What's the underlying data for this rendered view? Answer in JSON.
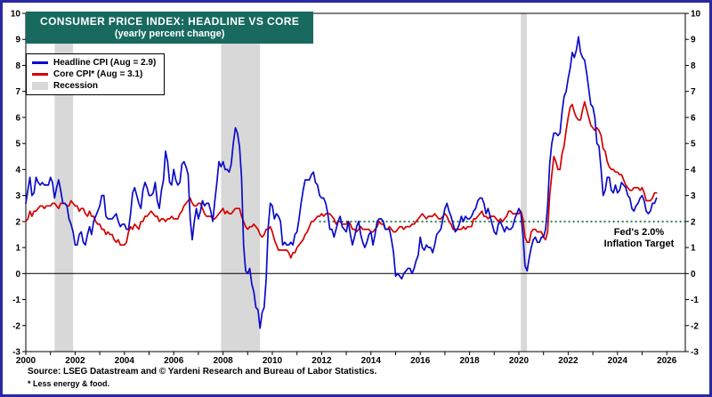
{
  "title": {
    "line1": "CONSUMER PRICE INDEX: HEADLINE VS CORE",
    "line2": "(yearly percent change)"
  },
  "legend": {
    "headline_label": "Headline CPI (Aug = 2.9)",
    "core_label": "Core CPI* (Aug = 3.1)",
    "recession_label": "Recession"
  },
  "annotations": {
    "fed_target_line1": "Fed's 2.0%",
    "fed_target_line2": "Inflation Target"
  },
  "footer": {
    "source": "Source: LSEG Datastream and © Yardeni Research and Bureau of Labor Statistics.",
    "footnote": "* Less energy & food."
  },
  "colors": {
    "headline": "#0b0bc8",
    "core": "#d40000",
    "recession": "#d8d8d8",
    "fed_target": "#267d52",
    "title_bg": "#186a5f",
    "title_text": "#ffffff",
    "border": "#2929a3",
    "axis": "#000000"
  },
  "chart_data": {
    "type": "line",
    "title": "CONSUMER PRICE INDEX: HEADLINE VS CORE",
    "subtitle": "(yearly percent change)",
    "xlabel": "",
    "ylabel": "yearly percent change",
    "xlim": [
      2000,
      2026.75
    ],
    "ylim": [
      -3,
      10
    ],
    "y_tick_step": 1,
    "x_tick_labels": [
      2000,
      2002,
      2004,
      2006,
      2008,
      2010,
      2012,
      2014,
      2016,
      2018,
      2020,
      2022,
      2024,
      2026
    ],
    "grid": false,
    "legend_position": "top-left",
    "fed_target": {
      "value": 2.0,
      "x_start": 2011.9,
      "label": "Fed's 2.0% Inflation Target"
    },
    "recessions": [
      [
        2001.17,
        2001.92
      ],
      [
        2007.92,
        2009.5
      ],
      [
        2020.08,
        2020.33
      ]
    ],
    "series": [
      {
        "name": "Headline CPI",
        "color_key": "headline",
        "latest": {
          "month": "Aug",
          "value": 2.9
        },
        "start_year": 2000,
        "frequency": "monthly",
        "values": [
          2.7,
          3.2,
          3.7,
          3.0,
          3.1,
          3.7,
          3.5,
          3.4,
          3.5,
          3.4,
          3.4,
          3.4,
          3.7,
          3.5,
          2.9,
          3.3,
          3.6,
          3.2,
          2.7,
          2.7,
          2.6,
          2.1,
          1.9,
          1.6,
          1.1,
          1.1,
          1.5,
          1.6,
          1.2,
          1.1,
          1.5,
          1.8,
          1.5,
          2.0,
          2.2,
          2.4,
          2.6,
          3.0,
          3.0,
          2.2,
          2.1,
          2.1,
          2.1,
          2.2,
          2.3,
          2.0,
          1.8,
          1.9,
          1.9,
          1.7,
          1.7,
          2.3,
          3.1,
          3.3,
          3.0,
          2.7,
          2.5,
          3.2,
          3.5,
          3.3,
          3.0,
          3.0,
          3.1,
          3.5,
          2.8,
          2.5,
          3.2,
          3.6,
          4.7,
          4.3,
          3.5,
          3.4,
          4.0,
          3.6,
          3.4,
          3.5,
          4.2,
          4.3,
          4.1,
          3.8,
          2.1,
          1.3,
          2.0,
          2.5,
          2.1,
          2.4,
          2.8,
          2.6,
          2.7,
          2.7,
          2.4,
          2.0,
          2.8,
          3.5,
          4.3,
          4.1,
          4.3,
          4.0,
          4.0,
          3.9,
          4.2,
          5.0,
          5.6,
          5.4,
          4.9,
          3.7,
          1.1,
          0.1,
          0.0,
          0.2,
          -0.4,
          -0.7,
          -1.3,
          -1.4,
          -2.1,
          -1.5,
          -1.3,
          -0.2,
          1.8,
          2.7,
          2.6,
          2.1,
          2.3,
          2.2,
          2.0,
          1.1,
          1.2,
          1.1,
          1.1,
          1.2,
          1.1,
          1.5,
          1.6,
          2.1,
          2.7,
          3.2,
          3.6,
          3.6,
          3.6,
          3.8,
          3.9,
          3.5,
          3.4,
          3.0,
          2.9,
          2.9,
          2.7,
          2.3,
          1.7,
          1.7,
          1.4,
          1.7,
          2.0,
          2.2,
          1.8,
          1.7,
          1.6,
          2.0,
          1.5,
          1.1,
          1.4,
          1.8,
          2.0,
          1.5,
          1.2,
          1.0,
          1.2,
          1.5,
          1.6,
          1.1,
          1.5,
          2.0,
          2.1,
          2.1,
          2.0,
          1.7,
          1.7,
          1.7,
          1.3,
          0.8,
          -0.1,
          0.0,
          -0.1,
          -0.2,
          0.0,
          0.1,
          0.2,
          0.2,
          0.0,
          0.2,
          0.5,
          0.7,
          1.4,
          1.0,
          0.9,
          1.1,
          1.0,
          1.0,
          0.8,
          1.1,
          1.5,
          1.6,
          1.7,
          2.1,
          2.5,
          2.7,
          2.4,
          2.2,
          1.9,
          1.6,
          1.7,
          1.9,
          2.2,
          2.0,
          2.2,
          2.1,
          2.1,
          2.2,
          2.4,
          2.5,
          2.8,
          2.9,
          2.9,
          2.7,
          2.3,
          2.5,
          2.2,
          1.9,
          1.6,
          1.5,
          1.9,
          2.0,
          1.8,
          1.6,
          1.8,
          1.7,
          1.7,
          1.8,
          2.1,
          2.3,
          2.5,
          2.3,
          1.5,
          0.3,
          0.1,
          0.6,
          1.0,
          1.3,
          1.4,
          1.2,
          1.2,
          1.4,
          1.4,
          1.7,
          2.6,
          4.2,
          5.0,
          5.4,
          5.4,
          5.3,
          5.4,
          6.2,
          6.8,
          7.0,
          7.5,
          7.9,
          8.5,
          8.3,
          8.6,
          9.1,
          8.5,
          8.3,
          8.2,
          7.7,
          7.1,
          6.5,
          6.4,
          6.0,
          5.0,
          4.9,
          4.0,
          3.0,
          3.2,
          3.7,
          3.7,
          3.2,
          3.1,
          3.4,
          3.1,
          3.2,
          3.5,
          3.4,
          3.3,
          3.0,
          2.9,
          2.5,
          2.4,
          2.6,
          2.7,
          2.9,
          3.0,
          2.8,
          2.4,
          2.3,
          2.4,
          2.7,
          2.7,
          2.9
        ]
      },
      {
        "name": "Core CPI (less energy & food)",
        "color_key": "core",
        "latest": {
          "month": "Aug",
          "value": 3.1
        },
        "start_year": 2000,
        "frequency": "monthly",
        "values": [
          2.0,
          2.1,
          2.4,
          2.2,
          2.4,
          2.4,
          2.5,
          2.6,
          2.6,
          2.5,
          2.6,
          2.6,
          2.6,
          2.7,
          2.7,
          2.6,
          2.5,
          2.7,
          2.7,
          2.7,
          2.6,
          2.6,
          2.8,
          2.7,
          2.6,
          2.6,
          2.4,
          2.5,
          2.5,
          2.3,
          2.2,
          2.4,
          2.2,
          2.2,
          2.0,
          1.9,
          1.9,
          1.7,
          1.7,
          1.5,
          1.6,
          1.5,
          1.5,
          1.3,
          1.2,
          1.3,
          1.1,
          1.1,
          1.1,
          1.2,
          1.6,
          1.8,
          1.7,
          1.9,
          1.8,
          1.7,
          2.0,
          2.0,
          2.2,
          2.2,
          2.3,
          2.4,
          2.3,
          2.2,
          2.2,
          2.0,
          2.1,
          2.1,
          2.0,
          2.1,
          2.1,
          2.2,
          2.1,
          2.1,
          2.1,
          2.3,
          2.4,
          2.6,
          2.7,
          2.8,
          2.9,
          2.7,
          2.6,
          2.6,
          2.7,
          2.7,
          2.5,
          2.3,
          2.2,
          2.2,
          2.2,
          2.1,
          2.1,
          2.2,
          2.3,
          2.4,
          2.5,
          2.3,
          2.4,
          2.3,
          2.3,
          2.4,
          2.5,
          2.5,
          2.5,
          2.2,
          2.0,
          1.8,
          1.7,
          1.8,
          1.8,
          1.9,
          1.8,
          1.7,
          1.5,
          1.4,
          1.5,
          1.7,
          1.7,
          1.8,
          1.6,
          1.3,
          1.1,
          0.9,
          0.9,
          0.9,
          0.9,
          0.9,
          0.8,
          0.6,
          0.8,
          0.8,
          1.0,
          1.1,
          1.2,
          1.3,
          1.5,
          1.6,
          1.8,
          2.0,
          2.0,
          2.1,
          2.2,
          2.2,
          2.3,
          2.2,
          2.3,
          2.3,
          2.3,
          2.2,
          2.1,
          1.9,
          2.0,
          2.0,
          1.9,
          1.9,
          1.9,
          2.0,
          1.9,
          1.7,
          1.7,
          1.6,
          1.7,
          1.8,
          1.7,
          1.7,
          1.7,
          1.7,
          1.6,
          1.6,
          1.7,
          1.8,
          2.0,
          1.9,
          1.9,
          1.7,
          1.7,
          1.8,
          1.7,
          1.6,
          1.6,
          1.7,
          1.8,
          1.8,
          1.7,
          1.8,
          1.8,
          1.8,
          1.9,
          1.9,
          2.0,
          2.1,
          2.2,
          2.3,
          2.2,
          2.1,
          2.2,
          2.2,
          2.2,
          2.3,
          2.2,
          2.1,
          2.1,
          2.2,
          2.3,
          2.2,
          2.0,
          1.9,
          1.7,
          1.7,
          1.7,
          1.7,
          1.7,
          1.8,
          1.7,
          1.8,
          1.8,
          1.8,
          2.1,
          2.1,
          2.2,
          2.3,
          2.4,
          2.2,
          2.2,
          2.1,
          2.2,
          2.2,
          2.2,
          2.1,
          2.0,
          2.1,
          2.0,
          2.1,
          2.2,
          2.4,
          2.4,
          2.3,
          2.3,
          2.3,
          2.3,
          2.4,
          2.1,
          1.4,
          1.2,
          1.2,
          1.6,
          1.7,
          1.7,
          1.6,
          1.6,
          1.6,
          1.4,
          1.3,
          1.6,
          3.0,
          3.8,
          4.5,
          4.3,
          4.0,
          4.0,
          4.6,
          4.9,
          5.5,
          6.0,
          6.4,
          6.5,
          6.2,
          6.0,
          5.9,
          5.9,
          6.3,
          6.6,
          6.3,
          6.0,
          5.7,
          5.6,
          5.5,
          5.6,
          5.5,
          5.3,
          4.8,
          4.7,
          4.3,
          4.1,
          4.0,
          4.0,
          3.9,
          3.9,
          3.8,
          3.8,
          3.6,
          3.4,
          3.3,
          3.2,
          3.2,
          3.3,
          3.3,
          3.3,
          3.2,
          3.3,
          3.1,
          2.8,
          2.8,
          2.8,
          2.9,
          3.1,
          3.1
        ]
      }
    ]
  }
}
